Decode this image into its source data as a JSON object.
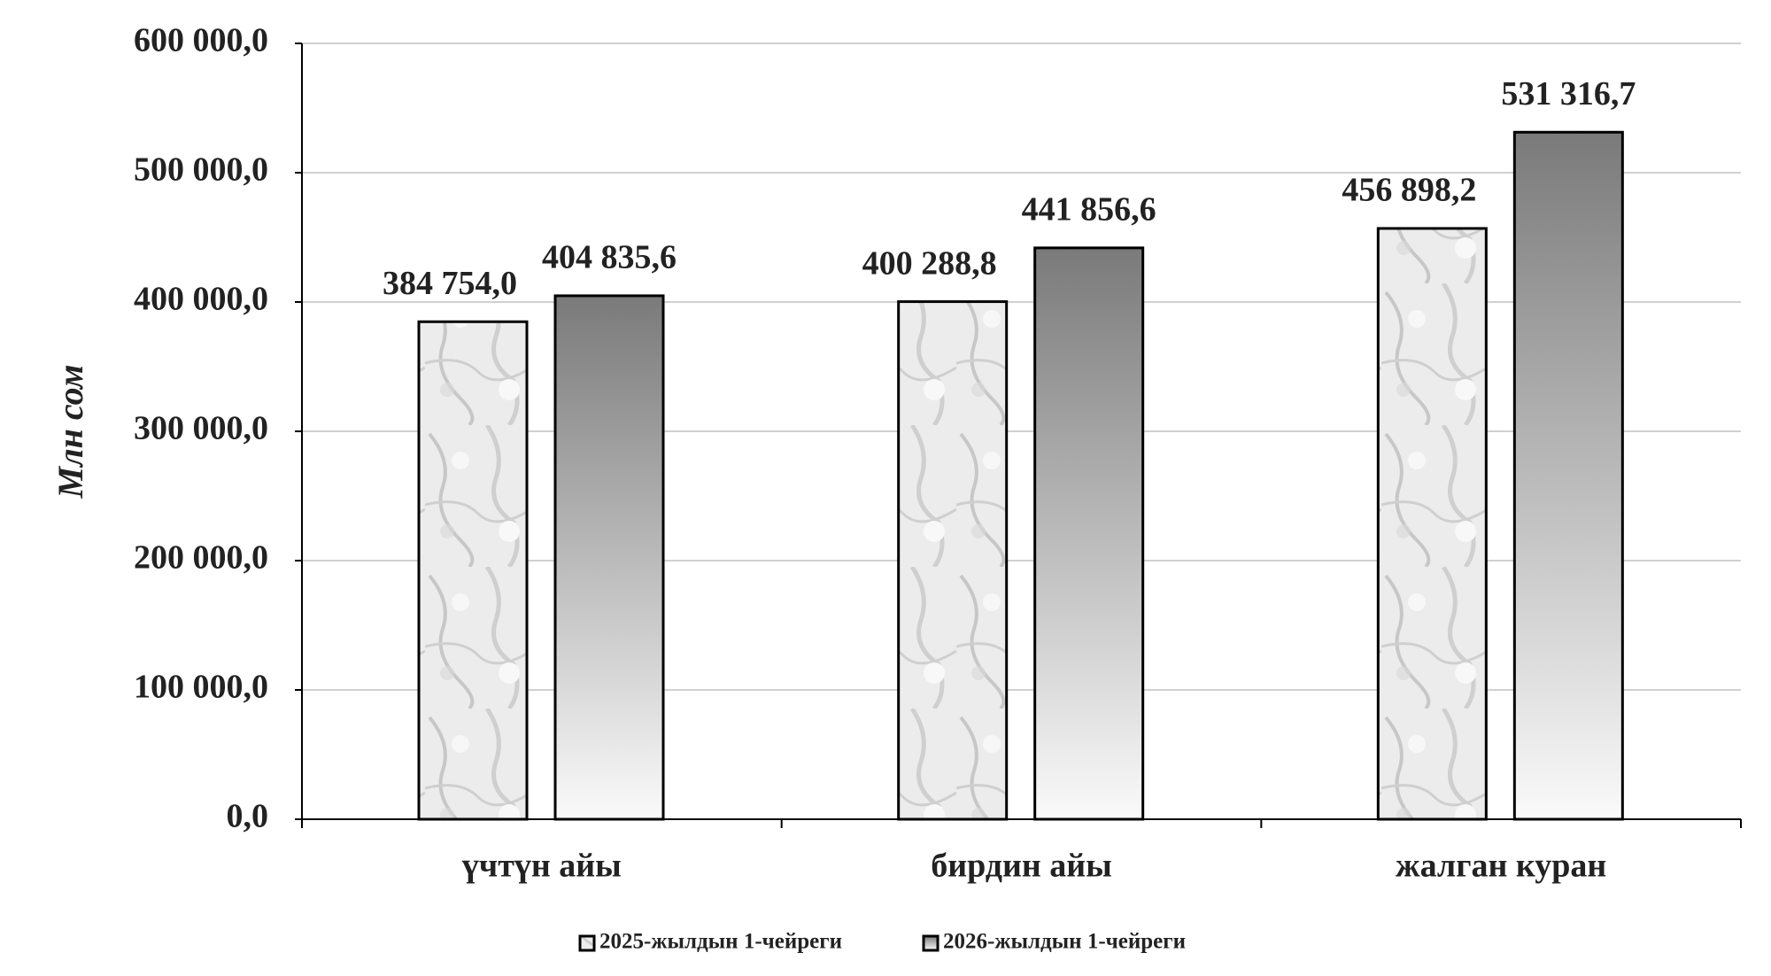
{
  "chart_data": {
    "type": "bar",
    "categories": [
      "үчтүн айы",
      "бирдин айы",
      "жалган куран"
    ],
    "series": [
      {
        "name": "2025-жылдын 1-чейреги",
        "color": "#e6e6e6",
        "values": [
          384754.0,
          400288.8,
          456898.2
        ],
        "value_labels": [
          "384 754,0",
          "400 288,8",
          "456 898,2"
        ]
      },
      {
        "name": "2026-жылдын 1-чейреги",
        "color": "#7a7a7a",
        "values": [
          404835.6,
          441856.6,
          531316.7
        ],
        "value_labels": [
          "404 835,6",
          "441 856,6",
          "531 316,7"
        ]
      }
    ],
    "y_label": "Млн сом",
    "ylim": [
      0,
      600000
    ],
    "yticks": [
      {
        "value": 0,
        "label": "0,0"
      },
      {
        "value": 100000,
        "label": "100 000,0"
      },
      {
        "value": 200000,
        "label": "200 000,0"
      },
      {
        "value": 300000,
        "label": "300 000,0"
      },
      {
        "value": 400000,
        "label": "400 000,0"
      },
      {
        "value": 500000,
        "label": "500 000,0"
      },
      {
        "value": 600000,
        "label": "600 000,0"
      }
    ],
    "grid": true,
    "legend": "bottom"
  }
}
